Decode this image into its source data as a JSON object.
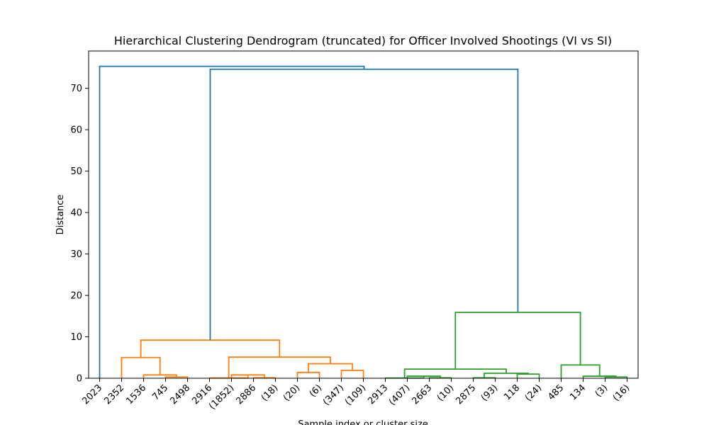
{
  "chart_data": {
    "type": "dendrogram",
    "title": "Hierarchical Clustering Dendrogram (truncated) for Officer Involved Shootings (VI vs SI)",
    "xlabel": "Sample index or cluster size",
    "ylabel": "Distance",
    "ylim": [
      0,
      79
    ],
    "yticks": [
      0,
      10,
      20,
      30,
      40,
      50,
      60,
      70
    ],
    "grid": false,
    "colors": {
      "top": "#1f77b4",
      "cluster1": "#ff7f0e",
      "cluster2": "#2ca02c"
    },
    "leaves": [
      "2023",
      "2352",
      "1536",
      "745",
      "2498",
      "2916",
      "(1852)",
      "2886",
      "(18)",
      "(20)",
      "(6)",
      "(347)",
      "(109)",
      "2913",
      "(407)",
      "2663",
      "(10)",
      "2875",
      "(93)",
      "118",
      "(24)",
      "485",
      "134",
      "(3)",
      "(16)"
    ],
    "merges": [
      {
        "a": 3,
        "b": 4,
        "height": 0.3,
        "color": "cluster1"
      },
      {
        "a": 2,
        "b": 25,
        "height": 0.8,
        "color": "cluster1"
      },
      {
        "a": 1,
        "b": 26,
        "height": 5.0,
        "color": "cluster1"
      },
      {
        "a": 7,
        "b": 8,
        "height": 0.1,
        "color": "cluster1"
      },
      {
        "a": 6,
        "b": 28,
        "height": 0.8,
        "color": "cluster1"
      },
      {
        "a": 5,
        "b": 29,
        "height": 0.05,
        "color": "cluster1"
      },
      {
        "a": 9,
        "b": 10,
        "height": 1.4,
        "color": "cluster1"
      },
      {
        "a": 11,
        "b": 12,
        "height": 1.9,
        "color": "cluster1"
      },
      {
        "a": 31,
        "b": 32,
        "height": 3.5,
        "color": "cluster1"
      },
      {
        "a": 30,
        "b": 33,
        "height": 5.1,
        "color": "cluster1"
      },
      {
        "a": 27,
        "b": 34,
        "height": 9.2,
        "color": "cluster1"
      },
      {
        "a": 15,
        "b": 16,
        "height": 0.1,
        "color": "cluster2"
      },
      {
        "a": 14,
        "b": 36,
        "height": 0.5,
        "color": "cluster2"
      },
      {
        "a": 13,
        "b": 37,
        "height": 0.05,
        "color": "cluster2"
      },
      {
        "a": 17,
        "b": 18,
        "height": 0.1,
        "color": "cluster2"
      },
      {
        "a": 19,
        "b": 20,
        "height": 1.0,
        "color": "cluster2"
      },
      {
        "a": 39,
        "b": 40,
        "height": 1.2,
        "color": "cluster2"
      },
      {
        "a": 38,
        "b": 41,
        "height": 2.2,
        "color": "cluster2"
      },
      {
        "a": 23,
        "b": 24,
        "height": 0.3,
        "color": "cluster2"
      },
      {
        "a": 22,
        "b": 43,
        "height": 0.5,
        "color": "cluster2"
      },
      {
        "a": 21,
        "b": 44,
        "height": 3.2,
        "color": "cluster2"
      },
      {
        "a": 42,
        "b": 45,
        "height": 15.9,
        "color": "cluster2"
      },
      {
        "a": 35,
        "b": 46,
        "height": 74.6,
        "color": "top"
      },
      {
        "a": 0,
        "b": 47,
        "height": 75.3,
        "color": "top"
      }
    ]
  }
}
